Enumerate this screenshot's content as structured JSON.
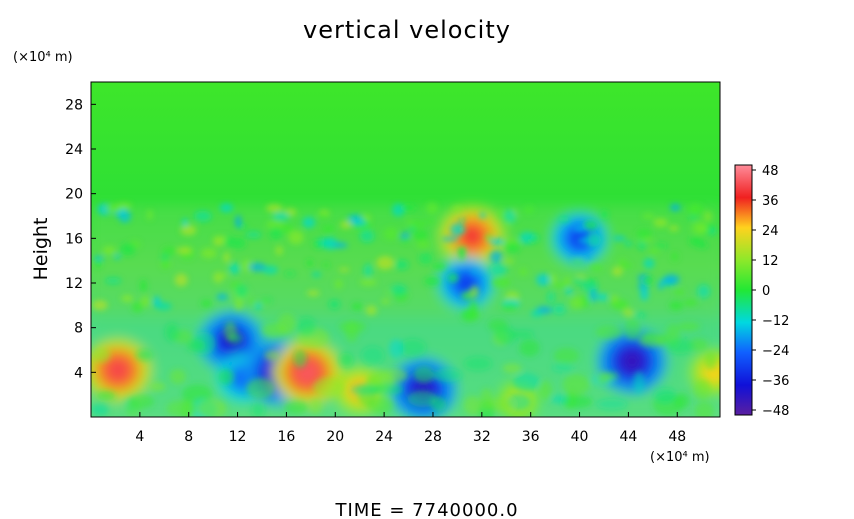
{
  "chart_data": {
    "type": "heatmap",
    "title": "vertical velocity",
    "ylabel": "Height",
    "x_unit": "(×10⁴ m)",
    "y_unit": "(×10⁴ m)",
    "x_ticks": [
      "4",
      "8",
      "12",
      "16",
      "20",
      "24",
      "28",
      "32",
      "36",
      "40",
      "44",
      "48"
    ],
    "y_ticks": [
      "4",
      "8",
      "12",
      "16",
      "20",
      "24",
      "28"
    ],
    "xlim": [
      0,
      51.5
    ],
    "ylim": [
      0,
      30
    ],
    "colorbar": {
      "ticks": [
        "48",
        "36",
        "24",
        "12",
        "0",
        "−12",
        "−24",
        "−36",
        "−48"
      ],
      "range": [
        -48,
        48
      ]
    },
    "background_value": 0,
    "features": [
      {
        "x": 2.2,
        "y": 4.2,
        "value": 40
      },
      {
        "x": 11.5,
        "y": 6.8,
        "value": -38
      },
      {
        "x": 12.5,
        "y": 3.5,
        "value": -26
      },
      {
        "x": 15.3,
        "y": 4.0,
        "value": -42
      },
      {
        "x": 17.7,
        "y": 4.0,
        "value": 42
      },
      {
        "x": 22.0,
        "y": 2.4,
        "value": 26
      },
      {
        "x": 27.2,
        "y": 2.5,
        "value": -40
      },
      {
        "x": 31.2,
        "y": 16.2,
        "value": 38
      },
      {
        "x": 30.7,
        "y": 12.0,
        "value": -30
      },
      {
        "x": 44.3,
        "y": 5.0,
        "value": -42
      },
      {
        "x": 51.0,
        "y": 4.0,
        "value": 24
      },
      {
        "x": 35.0,
        "y": 1.5,
        "value": 18
      },
      {
        "x": 40.0,
        "y": 16.0,
        "value": -30
      }
    ],
    "footer": "TIME  =  7740000.0"
  }
}
